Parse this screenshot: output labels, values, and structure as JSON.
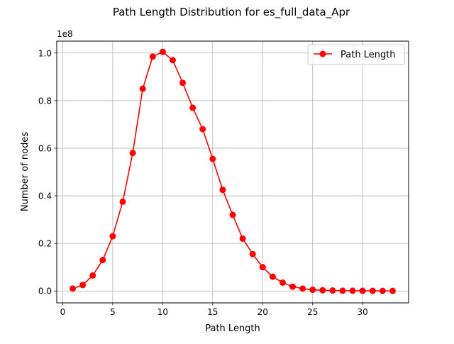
{
  "chart_data": {
    "type": "line",
    "title": "Path Length Distribution for es_full_data_Apr",
    "xlabel": "Path Length",
    "ylabel": "Number of nodes",
    "y_offset_label": "1e8",
    "xlim": [
      -0.6,
      34.6
    ],
    "ylim": [
      -0.05,
      1.05
    ],
    "x_ticks": [
      0,
      5,
      10,
      15,
      20,
      25,
      30
    ],
    "x_tick_labels": [
      "0",
      "5",
      "10",
      "15",
      "20",
      "25",
      "30"
    ],
    "y_ticks": [
      0.0,
      0.2,
      0.4,
      0.6,
      0.8,
      1.0
    ],
    "y_tick_labels": [
      "0.0",
      "0.2",
      "0.4",
      "0.6",
      "0.8",
      "1.0"
    ],
    "grid": true,
    "legend_position": "top-right",
    "series": [
      {
        "name": "Path Length",
        "color": "#ff0000",
        "marker": "circle",
        "x": [
          1,
          2,
          3,
          4,
          5,
          6,
          7,
          8,
          9,
          10,
          11,
          12,
          13,
          14,
          15,
          16,
          17,
          18,
          19,
          20,
          21,
          22,
          23,
          24,
          25,
          26,
          27,
          28,
          29,
          30,
          31,
          32,
          33
        ],
        "y": [
          0.01,
          0.025,
          0.065,
          0.13,
          0.23,
          0.375,
          0.58,
          0.85,
          0.985,
          1.005,
          0.97,
          0.875,
          0.77,
          0.68,
          0.555,
          0.425,
          0.32,
          0.22,
          0.155,
          0.1,
          0.06,
          0.035,
          0.018,
          0.01,
          0.005,
          0.003,
          0.002,
          0.001,
          0.001,
          0.0005,
          0.0005,
          0.0003,
          0.0002
        ]
      }
    ]
  }
}
